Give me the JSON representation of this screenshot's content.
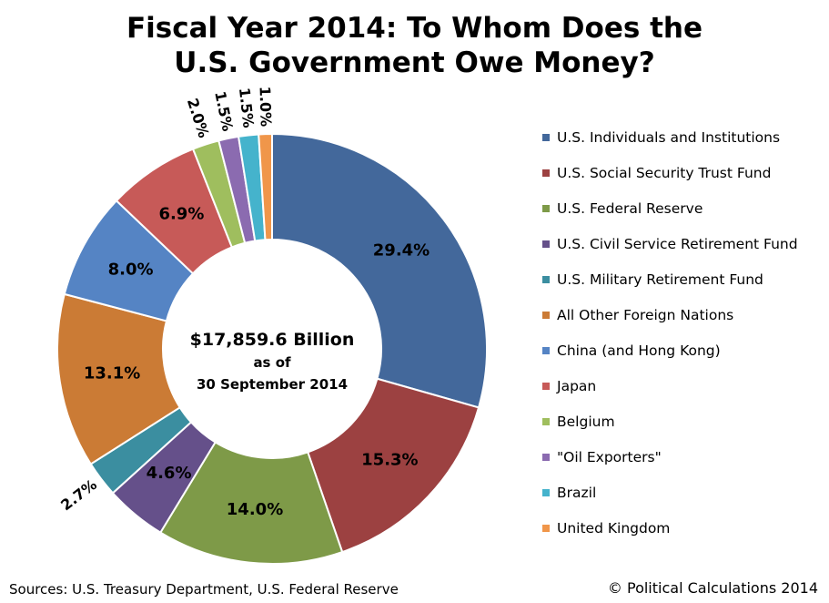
{
  "title": {
    "line1": "Fiscal Year 2014: To Whom Does the",
    "line2": "U.S. Government Owe Money?"
  },
  "center": {
    "amount": "$17,859.6 Billion",
    "line2": "as of",
    "line3": "30 September 2014"
  },
  "footer": {
    "sources": "Sources: U.S. Treasury Department, U.S. Federal Reserve",
    "copyright": "© Political Calculations 2014"
  },
  "chart_data": {
    "type": "pie",
    "donut": true,
    "legend_position": "right",
    "slices": [
      {
        "name": "U.S. Individuals and Institutions",
        "value": 29.4,
        "label": "29.4%",
        "color": "#43689b"
      },
      {
        "name": "U.S. Social Security Trust Fund",
        "value": 15.3,
        "label": "15.3%",
        "color": "#9c4141"
      },
      {
        "name": "U.S. Federal Reserve",
        "value": 14.0,
        "label": "14.0%",
        "color": "#7e9a48"
      },
      {
        "name": "U.S. Civil Service Retirement Fund",
        "value": 4.6,
        "label": "4.6%",
        "color": "#65508a"
      },
      {
        "name": "U.S. Military Retirement Fund",
        "value": 2.7,
        "label": "2.7%",
        "color": "#3b8ea0"
      },
      {
        "name": "All Other Foreign Nations",
        "value": 13.1,
        "label": "13.1%",
        "color": "#cb7b35"
      },
      {
        "name": "China (and Hong Kong)",
        "value": 8.0,
        "label": "8.0%",
        "color": "#5584c4"
      },
      {
        "name": "Japan",
        "value": 6.9,
        "label": "6.9%",
        "color": "#c75a58"
      },
      {
        "name": "Belgium",
        "value": 2.0,
        "label": "2.0%",
        "color": "#9fbe5e"
      },
      {
        "name": "\"Oil Exporters\"",
        "value": 1.5,
        "label": "1.5%",
        "color": "#8b6bb0"
      },
      {
        "name": "Brazil",
        "value": 1.5,
        "label": "1.5%",
        "color": "#45b3cc"
      },
      {
        "name": "United Kingdom",
        "value": 1.0,
        "label": "1.0%",
        "color": "#f0964a"
      }
    ]
  }
}
